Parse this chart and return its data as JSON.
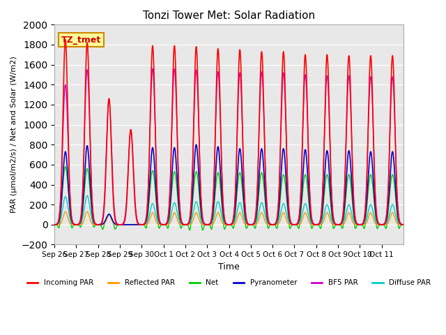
{
  "title": "Tonzi Tower Met: Solar Radiation",
  "ylabel": "PAR (μmol/m2/s) / Net and Solar (W/m2)",
  "xlabel": "Time",
  "ylim": [
    -200,
    2000
  ],
  "yticks": [
    -200,
    0,
    200,
    400,
    600,
    800,
    1000,
    1200,
    1400,
    1600,
    1800,
    2000
  ],
  "xtick_labels": [
    "Sep 26",
    "Sep 27",
    "Sep 28",
    "Sep 29",
    "Sep 30",
    "Oct 1",
    "Oct 2",
    "Oct 3",
    "Oct 4",
    "Oct 5",
    "Oct 6",
    "Oct 7",
    "Oct 8",
    "Oct 9",
    "Oct 10",
    "Oct 11"
  ],
  "annotation_box": "TZ_tmet",
  "annotation_box_color": "#ffff99",
  "annotation_box_edgecolor": "#cc8800",
  "annotation_box_textcolor": "#cc0000",
  "legend_entries": [
    "Incoming PAR",
    "Reflected PAR",
    "Net",
    "Pyranometer",
    "BF5 PAR",
    "Diffuse PAR"
  ],
  "legend_colors": [
    "#ff0000",
    "#ff9900",
    "#00cc00",
    "#0000cc",
    "#cc00cc",
    "#00cccc"
  ],
  "background_color": "#e8e8e8",
  "grid_color": "#ffffff",
  "series_colors": {
    "incoming": "#ff0000",
    "reflected": "#ff9900",
    "net": "#00cc00",
    "pyranometer": "#0000cc",
    "bf5": "#cc00cc",
    "diffuse": "#00cccc"
  },
  "n_days": 16,
  "day_peaks_incoming": [
    1850,
    1820,
    1260,
    950,
    1790,
    1790,
    1780,
    1760,
    1750,
    1730,
    1730,
    1700,
    1700,
    1690,
    1690,
    1690
  ],
  "day_peaks_bf5": [
    1400,
    1550,
    1260,
    950,
    1560,
    1560,
    1550,
    1530,
    1520,
    1530,
    1520,
    1500,
    1490,
    1490,
    1480,
    1480
  ],
  "day_peaks_pyranometer": [
    730,
    790,
    105,
    0,
    770,
    770,
    800,
    780,
    760,
    760,
    760,
    750,
    740,
    740,
    730,
    730
  ],
  "day_peaks_net": [
    580,
    560,
    100,
    0,
    540,
    530,
    530,
    520,
    520,
    520,
    500,
    500,
    500,
    500,
    500,
    500
  ],
  "day_peaks_reflected": [
    130,
    130,
    100,
    0,
    120,
    120,
    120,
    120,
    120,
    120,
    120,
    120,
    120,
    120,
    120,
    120
  ],
  "day_peaks_diffuse": [
    280,
    290,
    100,
    0,
    210,
    220,
    230,
    230,
    220,
    220,
    210,
    210,
    200,
    200,
    200,
    200
  ],
  "net_neg": [
    -80,
    -70,
    -55,
    0,
    -80,
    -80,
    -100,
    -90,
    -80,
    -80,
    -80,
    -80,
    -80,
    -80,
    -80,
    -80
  ]
}
